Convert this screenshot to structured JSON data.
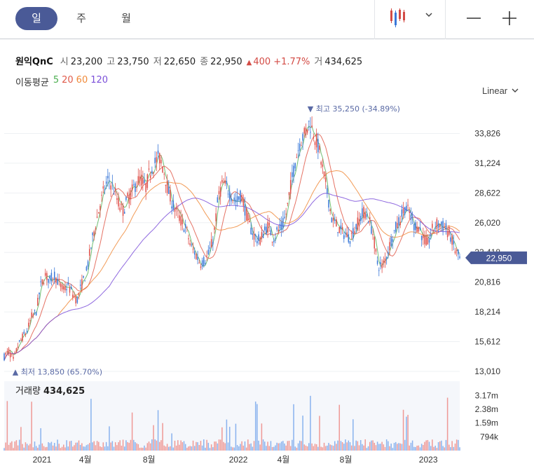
{
  "toolbar": {
    "periods": [
      {
        "label": "일",
        "active": true
      },
      {
        "label": "주",
        "active": false
      },
      {
        "label": "월",
        "active": false
      }
    ],
    "chart_type_icon": "candlestick-icon",
    "dropdown_icon": "chevron-down-icon",
    "zoom_out_icon": "minus-icon",
    "zoom_in_icon": "plus-icon"
  },
  "info": {
    "name": "원익QnC",
    "open_label": "시",
    "open": "23,200",
    "high_label": "고",
    "high": "23,750",
    "low_label": "저",
    "low": "22,650",
    "close_label": "종",
    "close": "22,950",
    "change_arrow": "▲",
    "change": "400",
    "change_pct": "+1.77%",
    "volume_label": "거",
    "volume": "434,625"
  },
  "moving_average": {
    "label": "이동평균",
    "periods": [
      {
        "value": "5",
        "color": "#4caf50"
      },
      {
        "value": "20",
        "color": "#e05a4a"
      },
      {
        "value": "60",
        "color": "#f08a3a"
      },
      {
        "value": "120",
        "color": "#7b4fd9"
      }
    ]
  },
  "scale": {
    "label": "Linear"
  },
  "colors": {
    "up": "#e0504a",
    "down": "#3a78d8",
    "accent": "#4a5a97"
  },
  "chart_data": {
    "type": "candlestick",
    "price_axis": {
      "ticks": [
        "33,826",
        "31,224",
        "28,622",
        "26,020",
        "23,418",
        "20,816",
        "18,214",
        "15,612",
        "13,010"
      ],
      "tick_values": [
        33826,
        31224,
        28622,
        26020,
        23418,
        20816,
        18214,
        15612,
        13010
      ],
      "range": [
        13010,
        36428
      ]
    },
    "x_axis": {
      "labels": [
        "2021",
        "4월",
        "8월",
        "2022",
        "4월",
        "8월",
        "2023"
      ],
      "label_positions": [
        0.083,
        0.178,
        0.318,
        0.514,
        0.613,
        0.75,
        0.931
      ]
    },
    "last_price": "22,950",
    "last_price_value": 22950,
    "high_note": {
      "text": "▼ 최고 35,250 (-34.89%)",
      "value": 35250,
      "position": 0.672
    },
    "low_note": {
      "text": "▲ 최저 13,850 (65.70%)",
      "value": 13850,
      "position": 0.012
    },
    "price_path": [
      [
        0.0,
        14300
      ],
      [
        0.01,
        14800
      ],
      [
        0.02,
        14000
      ],
      [
        0.03,
        15200
      ],
      [
        0.04,
        16000
      ],
      [
        0.05,
        16500
      ],
      [
        0.06,
        17800
      ],
      [
        0.07,
        18200
      ],
      [
        0.08,
        20500
      ],
      [
        0.09,
        21400
      ],
      [
        0.1,
        21000
      ],
      [
        0.11,
        21500
      ],
      [
        0.12,
        20700
      ],
      [
        0.13,
        20100
      ],
      [
        0.14,
        20500
      ],
      [
        0.15,
        19800
      ],
      [
        0.16,
        19200
      ],
      [
        0.17,
        20600
      ],
      [
        0.18,
        21600
      ],
      [
        0.19,
        23800
      ],
      [
        0.2,
        25800
      ],
      [
        0.21,
        27500
      ],
      [
        0.22,
        29000
      ],
      [
        0.23,
        29800
      ],
      [
        0.24,
        29000
      ],
      [
        0.25,
        27800
      ],
      [
        0.26,
        27000
      ],
      [
        0.27,
        28000
      ],
      [
        0.28,
        28700
      ],
      [
        0.29,
        29500
      ],
      [
        0.3,
        29900
      ],
      [
        0.31,
        29000
      ],
      [
        0.32,
        30500
      ],
      [
        0.33,
        31200
      ],
      [
        0.34,
        31800
      ],
      [
        0.35,
        30700
      ],
      [
        0.36,
        28800
      ],
      [
        0.37,
        27600
      ],
      [
        0.38,
        26800
      ],
      [
        0.39,
        26000
      ],
      [
        0.4,
        25400
      ],
      [
        0.41,
        23900
      ],
      [
        0.42,
        23300
      ],
      [
        0.43,
        22500
      ],
      [
        0.44,
        22700
      ],
      [
        0.45,
        23400
      ],
      [
        0.46,
        24800
      ],
      [
        0.47,
        28300
      ],
      [
        0.48,
        29500
      ],
      [
        0.49,
        29000
      ],
      [
        0.5,
        28300
      ],
      [
        0.51,
        27800
      ],
      [
        0.52,
        28500
      ],
      [
        0.53,
        27000
      ],
      [
        0.54,
        25600
      ],
      [
        0.55,
        24800
      ],
      [
        0.56,
        24400
      ],
      [
        0.57,
        25200
      ],
      [
        0.58,
        25800
      ],
      [
        0.59,
        24600
      ],
      [
        0.6,
        25300
      ],
      [
        0.61,
        25600
      ],
      [
        0.62,
        27000
      ],
      [
        0.63,
        29500
      ],
      [
        0.64,
        31600
      ],
      [
        0.65,
        33200
      ],
      [
        0.66,
        33800
      ],
      [
        0.67,
        34800
      ],
      [
        0.68,
        33800
      ],
      [
        0.69,
        32600
      ],
      [
        0.7,
        30500
      ],
      [
        0.71,
        28500
      ],
      [
        0.72,
        26200
      ],
      [
        0.73,
        25800
      ],
      [
        0.74,
        25200
      ],
      [
        0.75,
        25000
      ],
      [
        0.76,
        24700
      ],
      [
        0.77,
        25500
      ],
      [
        0.78,
        26300
      ],
      [
        0.79,
        27000
      ],
      [
        0.8,
        26400
      ],
      [
        0.81,
        25000
      ],
      [
        0.82,
        22300
      ],
      [
        0.83,
        22200
      ],
      [
        0.84,
        23200
      ],
      [
        0.85,
        24600
      ],
      [
        0.86,
        25600
      ],
      [
        0.87,
        26400
      ],
      [
        0.88,
        27400
      ],
      [
        0.89,
        26800
      ],
      [
        0.9,
        25800
      ],
      [
        0.91,
        25700
      ],
      [
        0.92,
        24600
      ],
      [
        0.93,
        24200
      ],
      [
        0.94,
        25400
      ],
      [
        0.95,
        25900
      ],
      [
        0.96,
        25800
      ],
      [
        0.97,
        25500
      ],
      [
        0.98,
        24800
      ],
      [
        0.99,
        23600
      ],
      [
        1.0,
        22950
      ]
    ],
    "volume": {
      "title": "거래량",
      "value": "434,625",
      "ticks": [
        "3.17m",
        "2.38m",
        "1.59m",
        "794k"
      ],
      "tick_values": [
        3170000,
        2380000,
        1590000,
        794000
      ],
      "max": 4000000
    }
  }
}
